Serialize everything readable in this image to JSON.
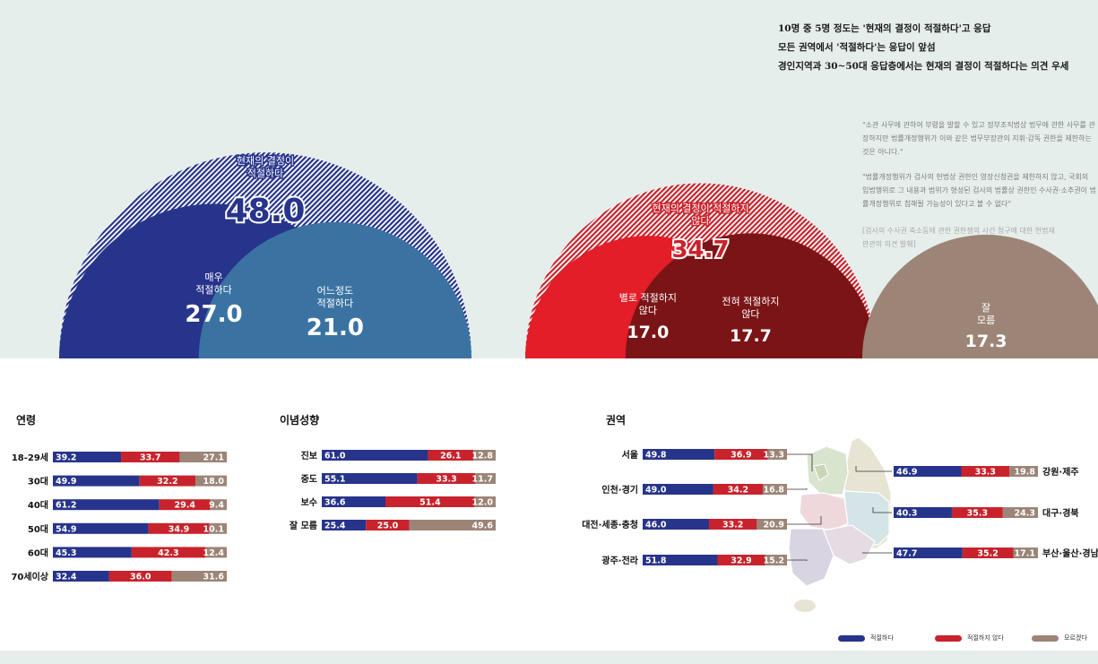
{
  "headlines": [
    "10명 중 5명 정도는 '현재의 결정이 적절하다'고 응답",
    "모든 권역에서 '적절하다'는 응답이 앞섬",
    "경인지역과 30~50대 응답층에서는 현재의 결정이 적절하다는 의견 우세"
  ],
  "quotes": [
    "\"소관 사무에 관하여 부령을 발할 수 있고 정부조직법상 법무에 관한 사무를 관장하지만 법률개정행위가 이와 같은 법무부장관의 지휘·감독 권한을 제한하는 것은 아니다.\"",
    "\"법률개정행위가 검사의 헌법상 권한인 영장신청권을 제한하지 않고, 국회의 입법행위로 그 내용과 범위가 형성된 검사의 법률상 권한인 수사권·소추권이 법률개정행위로 침해될 가능성이 있다고 볼 수 없다\""
  ],
  "source_note": "[검사의 수사권 축소등에 관한 권한쟁의 사건 청구에 대한 헌법재판관의 의견 발췌]",
  "colors": {
    "appropriate": "#27348b",
    "appropriate_light": "#3a73a2",
    "not_appropriate": "#c8232c",
    "not_appropriate_strong": "#e31e28",
    "not_appropriate_dark": "#7b1416",
    "unknown": "#9c8577",
    "panel_bg": "#e6eeec"
  },
  "sections": {
    "age": "연령",
    "ideology": "이념성향",
    "region": "권역"
  },
  "legend": [
    "적절하다",
    "적절하지 않다",
    "모르겠다"
  ],
  "chart_data": [
    {
      "type": "bubble",
      "groups": [
        {
          "label": "현재의 결정이 적절하다",
          "value": 48.0,
          "color": "#27348b",
          "children": [
            {
              "label": "매우 적절하다",
              "value": 27.0,
              "color": "#27348b"
            },
            {
              "label": "어느정도 적절하다",
              "value": 21.0,
              "color": "#3a73a2"
            }
          ]
        },
        {
          "label": "현재의 결정이 적절하지 않다",
          "value": 34.7,
          "color": "#c8232c",
          "children": [
            {
              "label": "별로 적절하지 않다",
              "value": 17.0,
              "color": "#e31e28"
            },
            {
              "label": "전혀 적절하지 않다",
              "value": 17.7,
              "color": "#7b1416"
            }
          ]
        },
        {
          "label": "잘 모름",
          "value": 17.3,
          "color": "#9c8577",
          "children": []
        }
      ]
    },
    {
      "type": "bar",
      "stacked": true,
      "title": "연령",
      "categories": [
        "18-29세",
        "30대",
        "40대",
        "50대",
        "60대",
        "70세이상"
      ],
      "series": [
        {
          "name": "적절하다",
          "values": [
            39.2,
            49.9,
            61.2,
            54.9,
            45.3,
            32.4
          ]
        },
        {
          "name": "적절하지 않다",
          "values": [
            33.7,
            32.2,
            29.4,
            34.9,
            42.3,
            36.0
          ]
        },
        {
          "name": "모르겠다",
          "values": [
            27.1,
            18.0,
            9.4,
            10.1,
            12.4,
            31.6
          ]
        }
      ]
    },
    {
      "type": "bar",
      "stacked": true,
      "title": "이념성향",
      "categories": [
        "진보",
        "중도",
        "보수",
        "잘 모름"
      ],
      "series": [
        {
          "name": "적절하다",
          "values": [
            61.0,
            55.1,
            36.6,
            25.4
          ]
        },
        {
          "name": "적절하지 않다",
          "values": [
            26.1,
            33.3,
            51.4,
            25.0
          ]
        },
        {
          "name": "모르겠다",
          "values": [
            12.8,
            11.7,
            12.0,
            49.6
          ]
        }
      ]
    },
    {
      "type": "bar",
      "stacked": true,
      "title": "권역",
      "categories": [
        "서울",
        "인천·경기",
        "대전·세종·충청",
        "광주·전라",
        "강원·제주",
        "대구·경북",
        "부산·울산·경남"
      ],
      "series": [
        {
          "name": "적절하다",
          "values": [
            49.8,
            49.0,
            46.0,
            51.8,
            46.9,
            40.3,
            47.7
          ]
        },
        {
          "name": "적절하지 않다",
          "values": [
            36.9,
            34.2,
            33.2,
            32.9,
            33.3,
            35.3,
            35.2
          ]
        },
        {
          "name": "모르겠다",
          "values": [
            13.3,
            16.8,
            20.9,
            15.2,
            19.8,
            24.3,
            17.1
          ]
        }
      ]
    }
  ]
}
